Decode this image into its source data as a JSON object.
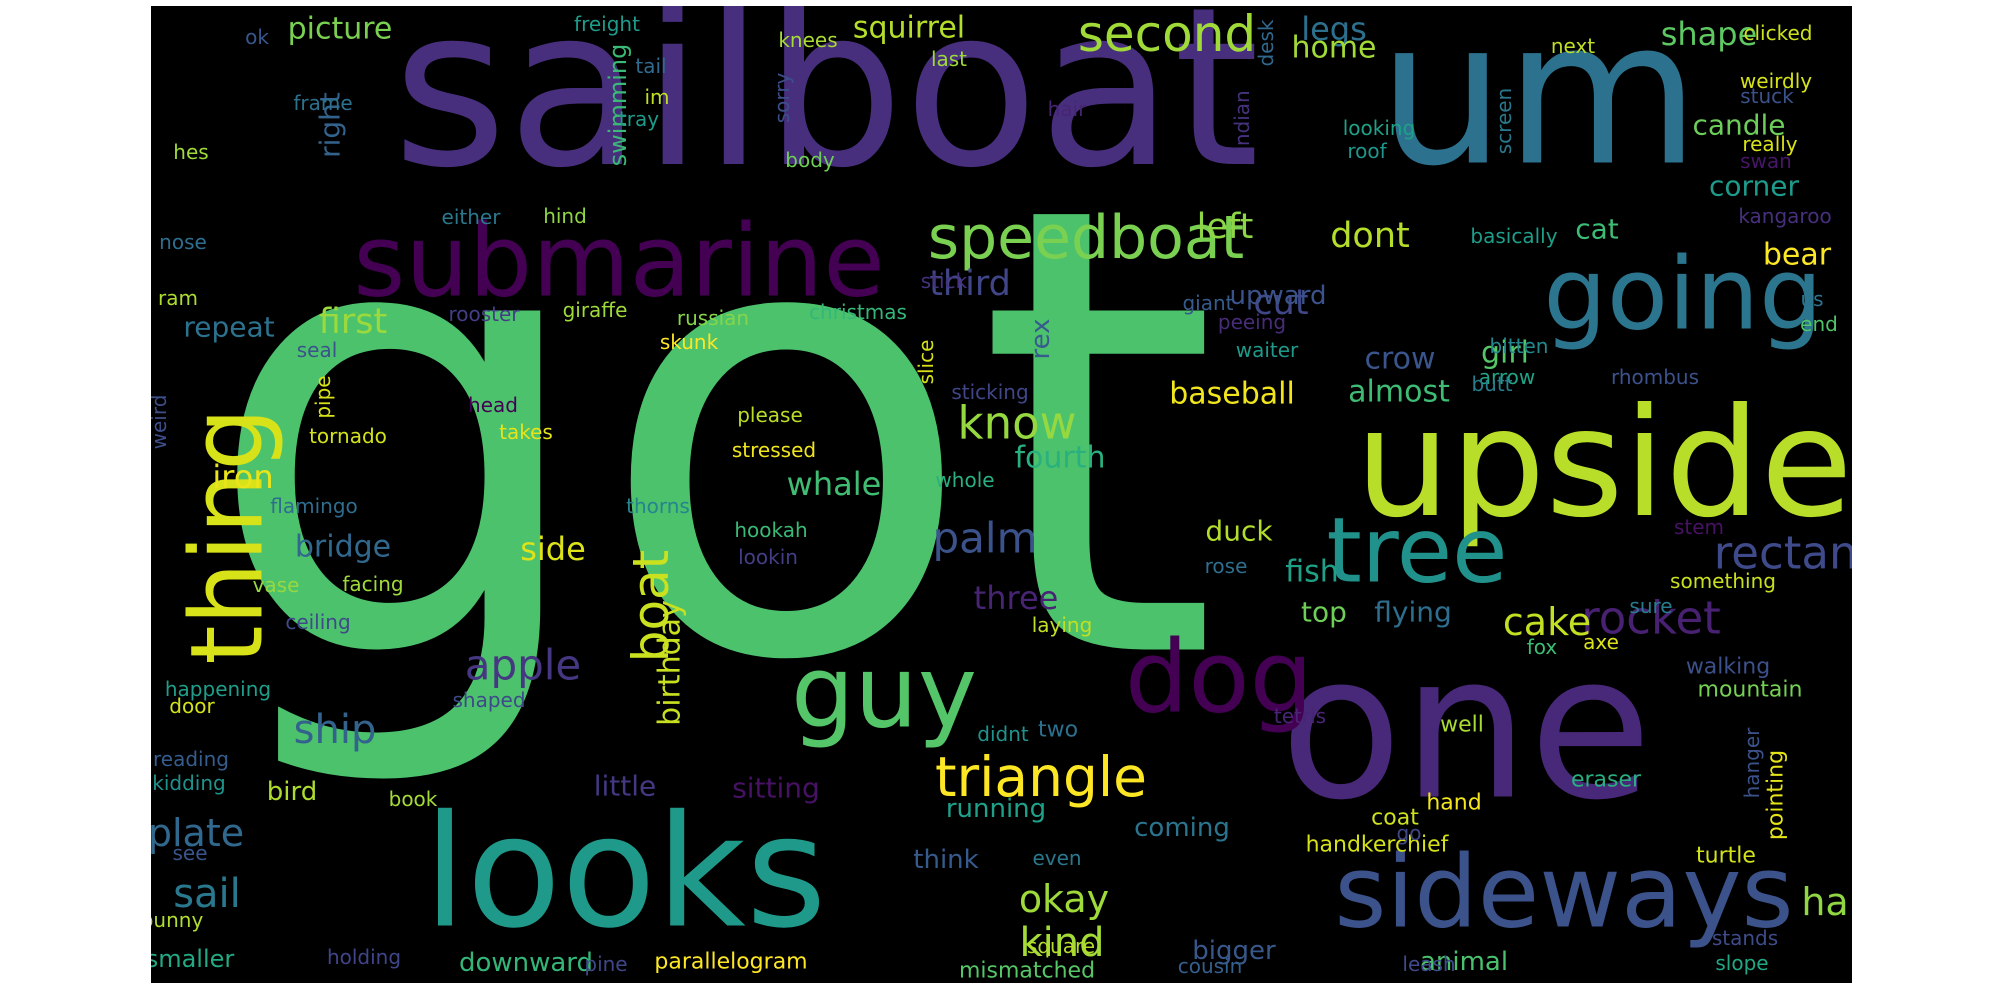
{
  "words": [
    {
      "text": "got",
      "color": "#4cc26c"
    },
    {
      "text": "sailboat",
      "color": "#472f7d"
    },
    {
      "text": "um",
      "color": "#2c718e"
    },
    {
      "text": "upside",
      "color": "#b8de29"
    },
    {
      "text": "one",
      "color": "#482878"
    },
    {
      "text": "looks",
      "color": "#1f9a8a"
    },
    {
      "text": "submarine",
      "color": "#440154"
    },
    {
      "text": "going",
      "color": "#2b758e"
    },
    {
      "text": "thing",
      "color": "#d8e219"
    },
    {
      "text": "sideways",
      "color": "#3b528b"
    },
    {
      "text": "tree",
      "color": "#21918c"
    },
    {
      "text": "guy",
      "color": "#54c568"
    },
    {
      "text": "dog",
      "color": "#440154"
    },
    {
      "text": "speedboat",
      "color": "#7ad151"
    },
    {
      "text": "second",
      "color": "#a0da39"
    },
    {
      "text": "triangle",
      "color": "#fde725"
    },
    {
      "text": "boat",
      "color": "#cae11f"
    },
    {
      "text": "rectangle",
      "color": "#3e4a89"
    },
    {
      "text": "rocket",
      "color": "#482173"
    },
    {
      "text": "palm",
      "color": "#3b528b"
    },
    {
      "text": "apple",
      "color": "#453781"
    },
    {
      "text": "know",
      "color": "#95d840"
    },
    {
      "text": "ship",
      "color": "#33638d"
    },
    {
      "text": "sail",
      "color": "#2a788e"
    },
    {
      "text": "plate",
      "color": "#31688e"
    },
    {
      "text": "kind",
      "color": "#a5db36"
    },
    {
      "text": "okay",
      "color": "#9fda3a"
    },
    {
      "text": "half",
      "color": "#90d743"
    },
    {
      "text": "birthday",
      "color": "#c8e020"
    },
    {
      "text": "squirrel",
      "color": "#b5de2b"
    },
    {
      "text": "picture",
      "color": "#7ad151"
    },
    {
      "text": "shape",
      "color": "#5ec962"
    },
    {
      "text": "legs",
      "color": "#2d708e"
    },
    {
      "text": "third",
      "color": "#404688"
    },
    {
      "text": "left",
      "color": "#8ed645"
    },
    {
      "text": "dont",
      "color": "#b5de2b"
    },
    {
      "text": "cut",
      "color": "#3f4788"
    },
    {
      "text": "first",
      "color": "#9bd93c"
    },
    {
      "text": "three",
      "color": "#482475"
    },
    {
      "text": "cake",
      "color": "#c2df23"
    },
    {
      "text": "side",
      "color": "#dde318"
    },
    {
      "text": "whale",
      "color": "#40bd72"
    },
    {
      "text": "fourth",
      "color": "#2ab07f"
    },
    {
      "text": "bridge",
      "color": "#31688e"
    },
    {
      "text": "iron",
      "color": "#eae51a"
    },
    {
      "text": "repeat",
      "color": "#2c728e"
    },
    {
      "text": "fish",
      "color": "#1fa187"
    },
    {
      "text": "duck",
      "color": "#b2dd2d"
    },
    {
      "text": "top",
      "color": "#6ece58"
    },
    {
      "text": "flying",
      "color": "#2e6e8e"
    },
    {
      "text": "baseball",
      "color": "#f1e51d"
    },
    {
      "text": "almost",
      "color": "#3fbc73"
    },
    {
      "text": "girl",
      "color": "#56c667"
    },
    {
      "text": "crow",
      "color": "#39558c"
    },
    {
      "text": "cat",
      "color": "#3dbc74"
    },
    {
      "text": "bear",
      "color": "#fde725"
    },
    {
      "text": "candle",
      "color": "#6ccd5a"
    },
    {
      "text": "corner",
      "color": "#1e9b8a"
    },
    {
      "text": "home",
      "color": "#a2da37"
    },
    {
      "text": "right",
      "color": "#33638d"
    },
    {
      "text": "swimming",
      "color": "#3aba76"
    },
    {
      "text": "upward",
      "color": "#3b528b"
    },
    {
      "text": "rex",
      "color": "#375b8d"
    },
    {
      "text": "little",
      "color": "#453882"
    },
    {
      "text": "sitting",
      "color": "#471164"
    },
    {
      "text": "bird",
      "color": "#addc30"
    },
    {
      "text": "running",
      "color": "#1fa088"
    },
    {
      "text": "coming",
      "color": "#2b748e"
    },
    {
      "text": "think",
      "color": "#375a8c"
    },
    {
      "text": "smaller",
      "color": "#23a983"
    },
    {
      "text": "downward",
      "color": "#34b679"
    },
    {
      "text": "animal",
      "color": "#4ac16d"
    },
    {
      "text": "bigger",
      "color": "#38588c"
    },
    {
      "text": "pointing",
      "color": "#e5e419"
    },
    {
      "text": "eraser",
      "color": "#29af7f"
    },
    {
      "text": "walking",
      "color": "#3c508b"
    },
    {
      "text": "mountain",
      "color": "#75d054"
    },
    {
      "text": "turtle",
      "color": "#d2e21b"
    },
    {
      "text": "hand",
      "color": "#f4e61e"
    },
    {
      "text": "coat",
      "color": "#cde11d"
    },
    {
      "text": "handkerchief",
      "color": "#d5e21a"
    },
    {
      "text": "well",
      "color": "#a8db34"
    },
    {
      "text": "two",
      "color": "#2d708e"
    },
    {
      "text": "didnt",
      "color": "#1f948c"
    },
    {
      "text": "leash",
      "color": "#3e4a89"
    },
    {
      "text": "cousin",
      "color": "#355f8d"
    },
    {
      "text": "mismatched",
      "color": "#56c667"
    },
    {
      "text": "parallelogram",
      "color": "#fde725"
    },
    {
      "text": "pine",
      "color": "#3f4788"
    },
    {
      "text": "holding",
      "color": "#404588"
    },
    {
      "text": "bunny",
      "color": "#b0dd2f"
    },
    {
      "text": "square",
      "color": "#b5de2b"
    },
    {
      "text": "slope",
      "color": "#22a785"
    },
    {
      "text": "stands",
      "color": "#3e4c8a"
    },
    {
      "text": "go",
      "color": "#3f4788"
    },
    {
      "text": "even",
      "color": "#2a788e"
    },
    {
      "text": "book",
      "color": "#a5db36"
    },
    {
      "text": "see",
      "color": "#39568c"
    },
    {
      "text": "kidding",
      "color": "#20928c"
    },
    {
      "text": "reading",
      "color": "#365d8d"
    },
    {
      "text": "door",
      "color": "#d2e21b"
    },
    {
      "text": "happening",
      "color": "#1f9e89"
    },
    {
      "text": "shaped",
      "color": "#3e4989"
    },
    {
      "text": "tetris",
      "color": "#482576"
    },
    {
      "text": "laying",
      "color": "#c0df25"
    },
    {
      "text": "ceiling",
      "color": "#3e4a89"
    },
    {
      "text": "vase",
      "color": "#98d83e"
    },
    {
      "text": "facing",
      "color": "#a0da39"
    },
    {
      "text": "flamingo",
      "color": "#2e6d8e"
    },
    {
      "text": "tornado",
      "color": "#d2e21b"
    },
    {
      "text": "weird",
      "color": "#3d4e8a"
    },
    {
      "text": "pipe",
      "color": "#d8e219"
    },
    {
      "text": "head",
      "color": "#440154"
    },
    {
      "text": "takes",
      "color": "#e7e419"
    },
    {
      "text": "thorns",
      "color": "#25848e"
    },
    {
      "text": "lookin",
      "color": "#433e85"
    },
    {
      "text": "hookah",
      "color": "#3aba76"
    },
    {
      "text": "please",
      "color": "#bade28"
    },
    {
      "text": "stressed",
      "color": "#f1e51d"
    },
    {
      "text": "whole",
      "color": "#2ab07f"
    },
    {
      "text": "sticking",
      "color": "#404688"
    },
    {
      "text": "slice",
      "color": "#d5e21a"
    },
    {
      "text": "stick",
      "color": "#46327e"
    },
    {
      "text": "giant",
      "color": "#365c8d"
    },
    {
      "text": "waiter",
      "color": "#1f9a8a"
    },
    {
      "text": "peeing",
      "color": "#472c7a"
    },
    {
      "text": "bitten",
      "color": "#23898e"
    },
    {
      "text": "arrow",
      "color": "#20a386"
    },
    {
      "text": "butt",
      "color": "#287d8e"
    },
    {
      "text": "rhombus",
      "color": "#3b528b"
    },
    {
      "text": "end",
      "color": "#50c46a"
    },
    {
      "text": "us",
      "color": "#2c738e"
    },
    {
      "text": "kangaroo",
      "color": "#472f7d"
    },
    {
      "text": "basically",
      "color": "#1e9d89"
    },
    {
      "text": "swan",
      "color": "#481668"
    },
    {
      "text": "really",
      "color": "#d8e219"
    },
    {
      "text": "stuck",
      "color": "#3b528b"
    },
    {
      "text": "weirdly",
      "color": "#d5e21a"
    },
    {
      "text": "clicked",
      "color": "#cde11d"
    },
    {
      "text": "next",
      "color": "#bddf26"
    },
    {
      "text": "something",
      "color": "#c8e020"
    },
    {
      "text": "sure",
      "color": "#287c8e"
    },
    {
      "text": "stem",
      "color": "#471164"
    },
    {
      "text": "rose",
      "color": "#2e6e8e"
    },
    {
      "text": "fox",
      "color": "#3dbc74"
    },
    {
      "text": "axe",
      "color": "#dae319"
    },
    {
      "text": "hanger",
      "color": "#3b528b"
    },
    {
      "text": "indian",
      "color": "#46327e"
    },
    {
      "text": "desk",
      "color": "#31688e"
    },
    {
      "text": "screen",
      "color": "#2a788e"
    },
    {
      "text": "looking",
      "color": "#1fa088"
    },
    {
      "text": "roof",
      "color": "#1f968b"
    },
    {
      "text": "hair",
      "color": "#482475"
    },
    {
      "text": "last",
      "color": "#9dd93b"
    },
    {
      "text": "knees",
      "color": "#a8db34"
    },
    {
      "text": "sorry",
      "color": "#3c4f8a"
    },
    {
      "text": "body",
      "color": "#6ece58"
    },
    {
      "text": "tray",
      "color": "#1f9a8a"
    },
    {
      "text": "im",
      "color": "#bddf26"
    },
    {
      "text": "tail",
      "color": "#2f6b8e"
    },
    {
      "text": "freight",
      "color": "#1e9b8a"
    },
    {
      "text": "ok",
      "color": "#39568c"
    },
    {
      "text": "frame",
      "color": "#2c718e"
    },
    {
      "text": "hes",
      "color": "#a0da39"
    },
    {
      "text": "either",
      "color": "#2a788e"
    },
    {
      "text": "hind",
      "color": "#8ed645"
    },
    {
      "text": "nose",
      "color": "#2e6e8e"
    },
    {
      "text": "ram",
      "color": "#addc30"
    },
    {
      "text": "rooster",
      "color": "#433e85"
    },
    {
      "text": "giraffe",
      "color": "#9fda3a"
    },
    {
      "text": "russian",
      "color": "#86d549"
    },
    {
      "text": "christmas",
      "color": "#35b779"
    },
    {
      "text": "skunk",
      "color": "#fde725"
    },
    {
      "text": "seal",
      "color": "#3b528b"
    }
  ]
}
